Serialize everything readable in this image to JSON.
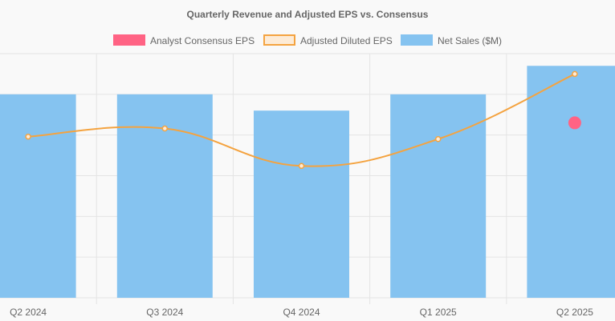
{
  "chart_data": {
    "type": "bar",
    "title": "Quarterly Revenue and Adjusted EPS vs. Consensus",
    "categories": [
      "Q2 2024",
      "Q3 2024",
      "Q4 2024",
      "Q1 2025",
      "Q2 2025"
    ],
    "legend_position": "top",
    "grid": true,
    "series": [
      {
        "name": "Analyst Consensus EPS",
        "type": "scatter",
        "color": "#ff6384",
        "values": [
          null,
          null,
          null,
          null,
          2.15
        ]
      },
      {
        "name": "Adjusted Diluted EPS",
        "type": "line",
        "color": "#f4a340",
        "fill": "#fdebd6",
        "values": [
          1.98,
          2.08,
          1.62,
          1.95,
          2.75
        ]
      },
      {
        "name": "Net Sales ($M)",
        "type": "bar",
        "color": "#85c3f0",
        "values": [
          500,
          500,
          460,
          500,
          570
        ]
      }
    ],
    "bar_axis_range": [
      0,
      600
    ],
    "eps_axis_range": [
      0,
      3.0
    ]
  }
}
